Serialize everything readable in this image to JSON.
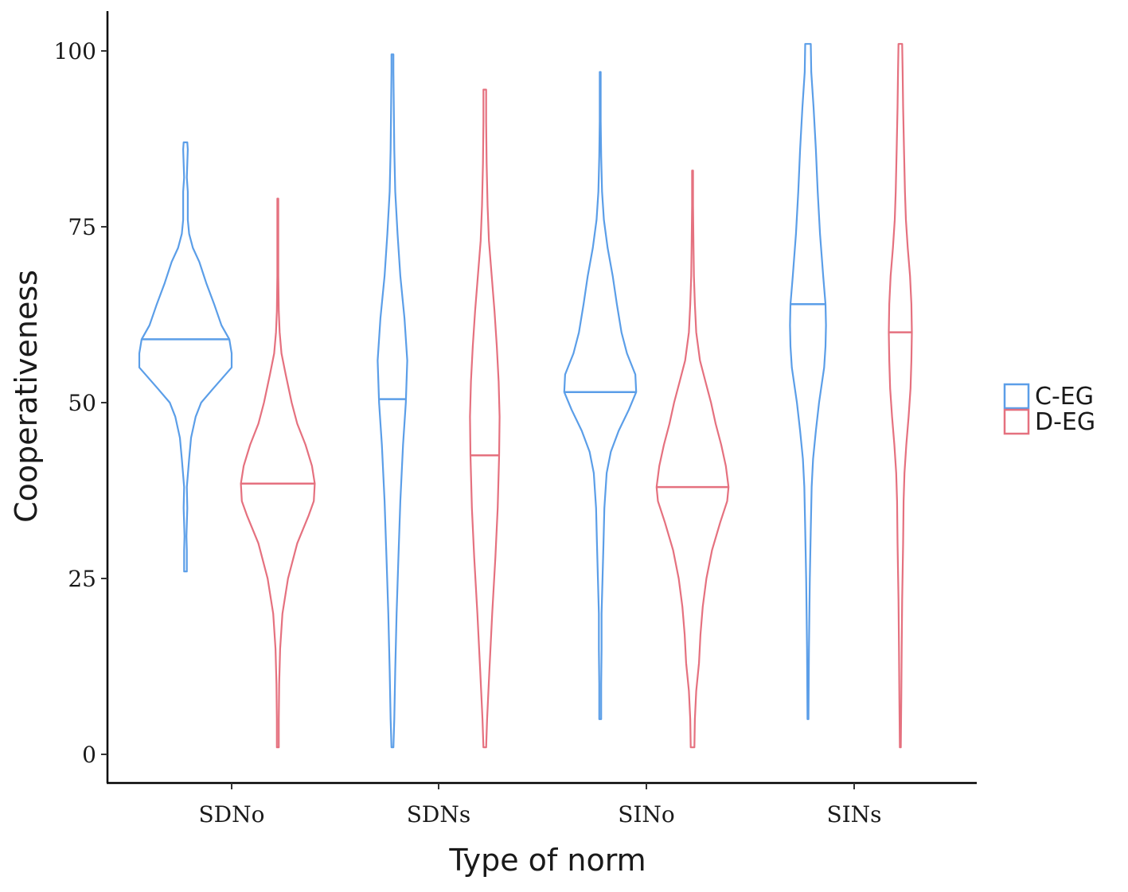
{
  "chart_data": {
    "type": "violin",
    "title": "",
    "xlabel": "Type of norm",
    "ylabel": "Cooperativeness",
    "categories": [
      "SDNo",
      "SDNs",
      "SINo",
      "SINs"
    ],
    "yticks": [
      0,
      25,
      50,
      75,
      100
    ],
    "ylim": [
      -4,
      106
    ],
    "grid": false,
    "legend": {
      "position": "right"
    },
    "series": [
      {
        "name": "C-EG",
        "color": "#5b9ee8",
        "violins": [
          {
            "category": "SDNo",
            "min": 26,
            "max": 87,
            "median": 59,
            "profile": [
              [
                26,
                0.03
              ],
              [
                29,
                0.03
              ],
              [
                31,
                0.02
              ],
              [
                35,
                0.04
              ],
              [
                38,
                0.03
              ],
              [
                42,
                0.08
              ],
              [
                45,
                0.12
              ],
              [
                48,
                0.22
              ],
              [
                50,
                0.34
              ],
              [
                52,
                0.6
              ],
              [
                55,
                1.0
              ],
              [
                57,
                1.0
              ],
              [
                59,
                0.95
              ],
              [
                61,
                0.78
              ],
              [
                64,
                0.62
              ],
              [
                67,
                0.45
              ],
              [
                70,
                0.3
              ],
              [
                72,
                0.16
              ],
              [
                74,
                0.08
              ],
              [
                76,
                0.05
              ],
              [
                78,
                0.05
              ],
              [
                80,
                0.05
              ],
              [
                82,
                0.03
              ],
              [
                84,
                0.04
              ],
              [
                86,
                0.05
              ],
              [
                87,
                0.04
              ]
            ]
          },
          {
            "category": "SDNs",
            "min": 1,
            "max": 99.5,
            "median": 50.5,
            "profile": [
              [
                1,
                0.02
              ],
              [
                5,
                0.04
              ],
              [
                12,
                0.06
              ],
              [
                20,
                0.09
              ],
              [
                28,
                0.13
              ],
              [
                36,
                0.17
              ],
              [
                44,
                0.23
              ],
              [
                50,
                0.29
              ],
              [
                56,
                0.32
              ],
              [
                62,
                0.26
              ],
              [
                68,
                0.17
              ],
              [
                74,
                0.11
              ],
              [
                80,
                0.06
              ],
              [
                86,
                0.04
              ],
              [
                92,
                0.03
              ],
              [
                97,
                0.02
              ],
              [
                99.5,
                0.02
              ]
            ]
          },
          {
            "category": "SINo",
            "min": 5,
            "max": 97,
            "median": 51.5,
            "profile": [
              [
                5,
                0.02
              ],
              [
                10,
                0.02
              ],
              [
                15,
                0.03
              ],
              [
                20,
                0.03
              ],
              [
                25,
                0.05
              ],
              [
                30,
                0.07
              ],
              [
                35,
                0.09
              ],
              [
                40,
                0.14
              ],
              [
                43,
                0.23
              ],
              [
                46,
                0.4
              ],
              [
                49,
                0.62
              ],
              [
                51.5,
                0.78
              ],
              [
                54,
                0.76
              ],
              [
                57,
                0.58
              ],
              [
                60,
                0.46
              ],
              [
                64,
                0.36
              ],
              [
                68,
                0.27
              ],
              [
                72,
                0.16
              ],
              [
                76,
                0.08
              ],
              [
                80,
                0.04
              ],
              [
                85,
                0.02
              ],
              [
                90,
                0.01
              ],
              [
                94,
                0.01
              ],
              [
                97,
                0.01
              ]
            ]
          },
          {
            "category": "SINs",
            "min": 5,
            "max": 101,
            "median": 64,
            "profile": [
              [
                5,
                0.01
              ],
              [
                15,
                0.02
              ],
              [
                25,
                0.04
              ],
              [
                32,
                0.06
              ],
              [
                38,
                0.08
              ],
              [
                42,
                0.11
              ],
              [
                46,
                0.17
              ],
              [
                50,
                0.24
              ],
              [
                55,
                0.35
              ],
              [
                58,
                0.38
              ],
              [
                61,
                0.39
              ],
              [
                64,
                0.38
              ],
              [
                68,
                0.33
              ],
              [
                74,
                0.26
              ],
              [
                80,
                0.21
              ],
              [
                86,
                0.17
              ],
              [
                92,
                0.12
              ],
              [
                97,
                0.07
              ],
              [
                101,
                0.06
              ]
            ]
          }
        ]
      },
      {
        "name": "D-EG",
        "color": "#e5717f",
        "violins": [
          {
            "category": "SDNo",
            "min": 1,
            "max": 79,
            "median": 38.5,
            "profile": [
              [
                1,
                0.02
              ],
              [
                5,
                0.02
              ],
              [
                10,
                0.03
              ],
              [
                15,
                0.05
              ],
              [
                20,
                0.1
              ],
              [
                25,
                0.22
              ],
              [
                30,
                0.42
              ],
              [
                34,
                0.67
              ],
              [
                36,
                0.78
              ],
              [
                38.5,
                0.8
              ],
              [
                41,
                0.74
              ],
              [
                44,
                0.6
              ],
              [
                47,
                0.42
              ],
              [
                50,
                0.3
              ],
              [
                54,
                0.17
              ],
              [
                57,
                0.08
              ],
              [
                60,
                0.04
              ],
              [
                63,
                0.02
              ],
              [
                68,
                0.01
              ],
              [
                72,
                0.01
              ],
              [
                76,
                0.01
              ],
              [
                79,
                0.01
              ]
            ]
          },
          {
            "category": "SDNs",
            "min": 1,
            "max": 94.5,
            "median": 42.5,
            "profile": [
              [
                1,
                0.03
              ],
              [
                5,
                0.05
              ],
              [
                12,
                0.1
              ],
              [
                20,
                0.16
              ],
              [
                28,
                0.23
              ],
              [
                35,
                0.28
              ],
              [
                42.5,
                0.31
              ],
              [
                48,
                0.32
              ],
              [
                53,
                0.3
              ],
              [
                58,
                0.26
              ],
              [
                63,
                0.21
              ],
              [
                68,
                0.15
              ],
              [
                73,
                0.09
              ],
              [
                78,
                0.06
              ],
              [
                84,
                0.04
              ],
              [
                90,
                0.03
              ],
              [
                94.5,
                0.03
              ]
            ]
          },
          {
            "category": "SINo",
            "min": 1,
            "max": 83,
            "median": 38,
            "profile": [
              [
                1,
                0.04
              ],
              [
                5,
                0.05
              ],
              [
                9,
                0.08
              ],
              [
                13,
                0.14
              ],
              [
                17,
                0.17
              ],
              [
                21,
                0.22
              ],
              [
                25,
                0.3
              ],
              [
                29,
                0.42
              ],
              [
                33,
                0.6
              ],
              [
                36,
                0.75
              ],
              [
                38,
                0.78
              ],
              [
                41,
                0.72
              ],
              [
                44,
                0.62
              ],
              [
                47,
                0.5
              ],
              [
                50,
                0.4
              ],
              [
                53,
                0.28
              ],
              [
                56,
                0.16
              ],
              [
                60,
                0.08
              ],
              [
                64,
                0.05
              ],
              [
                68,
                0.03
              ],
              [
                72,
                0.02
              ],
              [
                78,
                0.01
              ],
              [
                83,
                0.01
              ]
            ]
          },
          {
            "category": "SINs",
            "min": 1,
            "max": 101,
            "median": 60,
            "profile": [
              [
                1,
                0.01
              ],
              [
                8,
                0.02
              ],
              [
                15,
                0.03
              ],
              [
                22,
                0.04
              ],
              [
                30,
                0.06
              ],
              [
                36,
                0.07
              ],
              [
                40,
                0.09
              ],
              [
                44,
                0.13
              ],
              [
                48,
                0.18
              ],
              [
                52,
                0.22
              ],
              [
                56,
                0.24
              ],
              [
                60,
                0.25
              ],
              [
                64,
                0.24
              ],
              [
                68,
                0.21
              ],
              [
                72,
                0.16
              ],
              [
                76,
                0.12
              ],
              [
                80,
                0.1
              ],
              [
                86,
                0.08
              ],
              [
                92,
                0.06
              ],
              [
                97,
                0.05
              ],
              [
                101,
                0.04
              ]
            ]
          }
        ]
      }
    ]
  }
}
